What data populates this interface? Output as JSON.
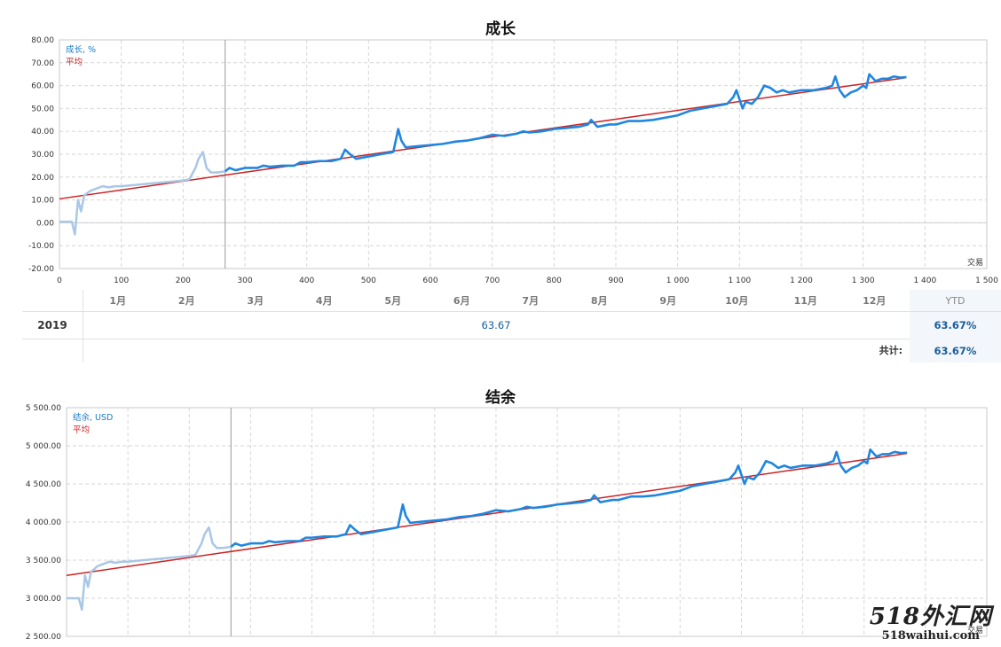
{
  "chart_data": [
    {
      "type": "line",
      "title": "成长",
      "legend": [
        "成长, %",
        "平均"
      ],
      "legend_position": "top-left",
      "x_unit_label": "交易",
      "xlim": [
        0,
        1500
      ],
      "ylim": [
        -20,
        80
      ],
      "grid": true,
      "x_ticks": [
        "0",
        "100",
        "200",
        "300",
        "400",
        "500",
        "600",
        "700",
        "800",
        "900",
        "1 000",
        "1 100",
        "1 200",
        "1 300",
        "1 400",
        "1 500"
      ],
      "x_tick_values": [
        0,
        100,
        200,
        300,
        400,
        500,
        600,
        700,
        800,
        900,
        1000,
        1100,
        1200,
        1300,
        1400,
        1500
      ],
      "y_ticks": [
        "80.00",
        "70.00",
        "60.00",
        "50.00",
        "40.00",
        "30.00",
        "20.00",
        "10.00",
        "0.00",
        "-10.00",
        "-20.00"
      ],
      "y_tick_values": [
        80,
        70,
        60,
        50,
        40,
        30,
        20,
        10,
        0,
        -10,
        -20
      ],
      "divider_x": 268,
      "series": [
        {
          "name": "成长, %",
          "color": "#1f86e0",
          "faded_color": "#a9c7e6",
          "x": [
            0,
            10,
            20,
            25,
            30,
            35,
            40,
            45,
            50,
            60,
            70,
            80,
            90,
            100,
            120,
            140,
            160,
            180,
            200,
            210,
            220,
            225,
            232,
            238,
            245,
            255,
            268,
            275,
            285,
            300,
            320,
            330,
            340,
            360,
            380,
            390,
            400,
            420,
            440,
            455,
            462,
            470,
            480,
            500,
            520,
            540,
            548,
            553,
            560,
            580,
            600,
            620,
            640,
            660,
            680,
            700,
            720,
            740,
            750,
            760,
            780,
            800,
            820,
            840,
            855,
            860,
            870,
            890,
            900,
            920,
            940,
            960,
            980,
            1000,
            1010,
            1020,
            1040,
            1060,
            1080,
            1090,
            1095,
            1100,
            1105,
            1110,
            1120,
            1130,
            1140,
            1150,
            1160,
            1170,
            1180,
            1200,
            1220,
            1240,
            1250,
            1255,
            1262,
            1270,
            1280,
            1290,
            1300,
            1305,
            1310,
            1320,
            1330,
            1340,
            1350,
            1360,
            1370
          ],
          "y": [
            0.5,
            0.5,
            0.5,
            -5,
            10,
            5,
            12,
            13,
            14,
            15,
            16,
            15.5,
            16,
            16,
            16.5,
            17,
            17.5,
            18,
            18.5,
            19,
            24,
            28,
            31,
            24,
            22,
            22,
            22.5,
            24,
            23,
            24,
            24,
            25,
            24.5,
            25,
            25,
            26.5,
            26.5,
            27,
            27,
            28,
            32,
            30,
            28,
            29,
            30,
            31,
            41,
            36,
            33,
            33.5,
            34,
            34.5,
            35.5,
            36,
            37,
            38.5,
            38,
            39,
            40,
            39.5,
            40,
            41,
            41.5,
            42,
            43,
            45,
            42,
            43,
            43,
            44.5,
            44.5,
            45,
            46,
            47,
            48,
            49,
            50,
            51,
            52,
            55,
            58,
            54,
            50,
            53,
            52,
            55,
            60,
            59,
            57,
            58,
            57,
            58,
            58,
            59,
            60,
            64,
            58,
            55,
            57,
            58,
            60,
            59,
            65,
            62,
            63,
            63,
            64,
            63.5,
            63.7
          ]
        },
        {
          "name": "平均",
          "color": "#cc2222",
          "x": [
            0,
            1370
          ],
          "y": [
            10.5,
            63.5
          ]
        }
      ]
    },
    {
      "type": "line",
      "title": "结余",
      "legend": [
        "结余, USD",
        "平均"
      ],
      "legend_position": "top-left",
      "x_unit_label": "交易",
      "xlim": [
        0,
        1500
      ],
      "ylim": [
        2500,
        5500
      ],
      "grid": true,
      "y_ticks": [
        "5 500.00",
        "5 000.00",
        "4 500.00",
        "4 000.00",
        "3 500.00",
        "3 000.00",
        "2 500.00"
      ],
      "y_tick_values": [
        5500,
        5000,
        4500,
        4000,
        3500,
        3000,
        2500
      ],
      "divider_x": 268,
      "series": [
        {
          "name": "结余, USD",
          "color": "#1f86e0",
          "faded_color": "#a9c7e6",
          "x": [
            0,
            10,
            20,
            25,
            30,
            35,
            40,
            45,
            50,
            60,
            70,
            80,
            90,
            100,
            120,
            140,
            160,
            180,
            200,
            210,
            220,
            225,
            232,
            238,
            245,
            255,
            268,
            275,
            285,
            300,
            320,
            330,
            340,
            360,
            380,
            390,
            400,
            420,
            440,
            455,
            462,
            470,
            480,
            500,
            520,
            540,
            548,
            553,
            560,
            580,
            600,
            620,
            640,
            660,
            680,
            700,
            720,
            740,
            750,
            760,
            780,
            800,
            820,
            840,
            855,
            860,
            870,
            890,
            900,
            920,
            940,
            960,
            980,
            1000,
            1010,
            1020,
            1040,
            1060,
            1080,
            1090,
            1095,
            1100,
            1105,
            1110,
            1120,
            1130,
            1140,
            1150,
            1160,
            1170,
            1180,
            1200,
            1220,
            1240,
            1250,
            1255,
            1262,
            1270,
            1280,
            1290,
            1300,
            1305,
            1310,
            1320,
            1330,
            1340,
            1350,
            1360,
            1370
          ],
          "y": [
            3000,
            3000,
            3000,
            2850,
            3300,
            3150,
            3350,
            3380,
            3420,
            3450,
            3480,
            3465,
            3480,
            3480,
            3495,
            3510,
            3525,
            3540,
            3555,
            3570,
            3720,
            3840,
            3930,
            3720,
            3660,
            3660,
            3675,
            3720,
            3690,
            3720,
            3720,
            3750,
            3735,
            3750,
            3750,
            3795,
            3795,
            3810,
            3810,
            3840,
            3960,
            3900,
            3840,
            3870,
            3900,
            3930,
            4230,
            4080,
            3990,
            4005,
            4020,
            4035,
            4065,
            4080,
            4110,
            4155,
            4140,
            4170,
            4200,
            4185,
            4200,
            4230,
            4245,
            4260,
            4290,
            4350,
            4260,
            4290,
            4290,
            4335,
            4335,
            4350,
            4380,
            4410,
            4440,
            4470,
            4500,
            4530,
            4560,
            4650,
            4740,
            4620,
            4500,
            4590,
            4560,
            4650,
            4800,
            4770,
            4710,
            4740,
            4710,
            4740,
            4740,
            4770,
            4800,
            4920,
            4740,
            4650,
            4710,
            4740,
            4800,
            4770,
            4950,
            4860,
            4890,
            4890,
            4920,
            4905,
            4910
          ]
        },
        {
          "name": "平均",
          "color": "#cc2222",
          "x": [
            0,
            1370
          ],
          "y": [
            3300,
            4900
          ]
        }
      ]
    }
  ],
  "monthly_table": {
    "months": [
      "1月",
      "2月",
      "3月",
      "4月",
      "5月",
      "6月",
      "7月",
      "8月",
      "9月",
      "10月",
      "11月",
      "12月"
    ],
    "ytd_header": "YTD",
    "year": "2019",
    "year_value": "63.67",
    "ytd_value": "63.67%",
    "total_label": "共计:",
    "total_value": "63.67%"
  },
  "watermark": {
    "logo": "518外汇网",
    "url": "518waihui.com"
  }
}
